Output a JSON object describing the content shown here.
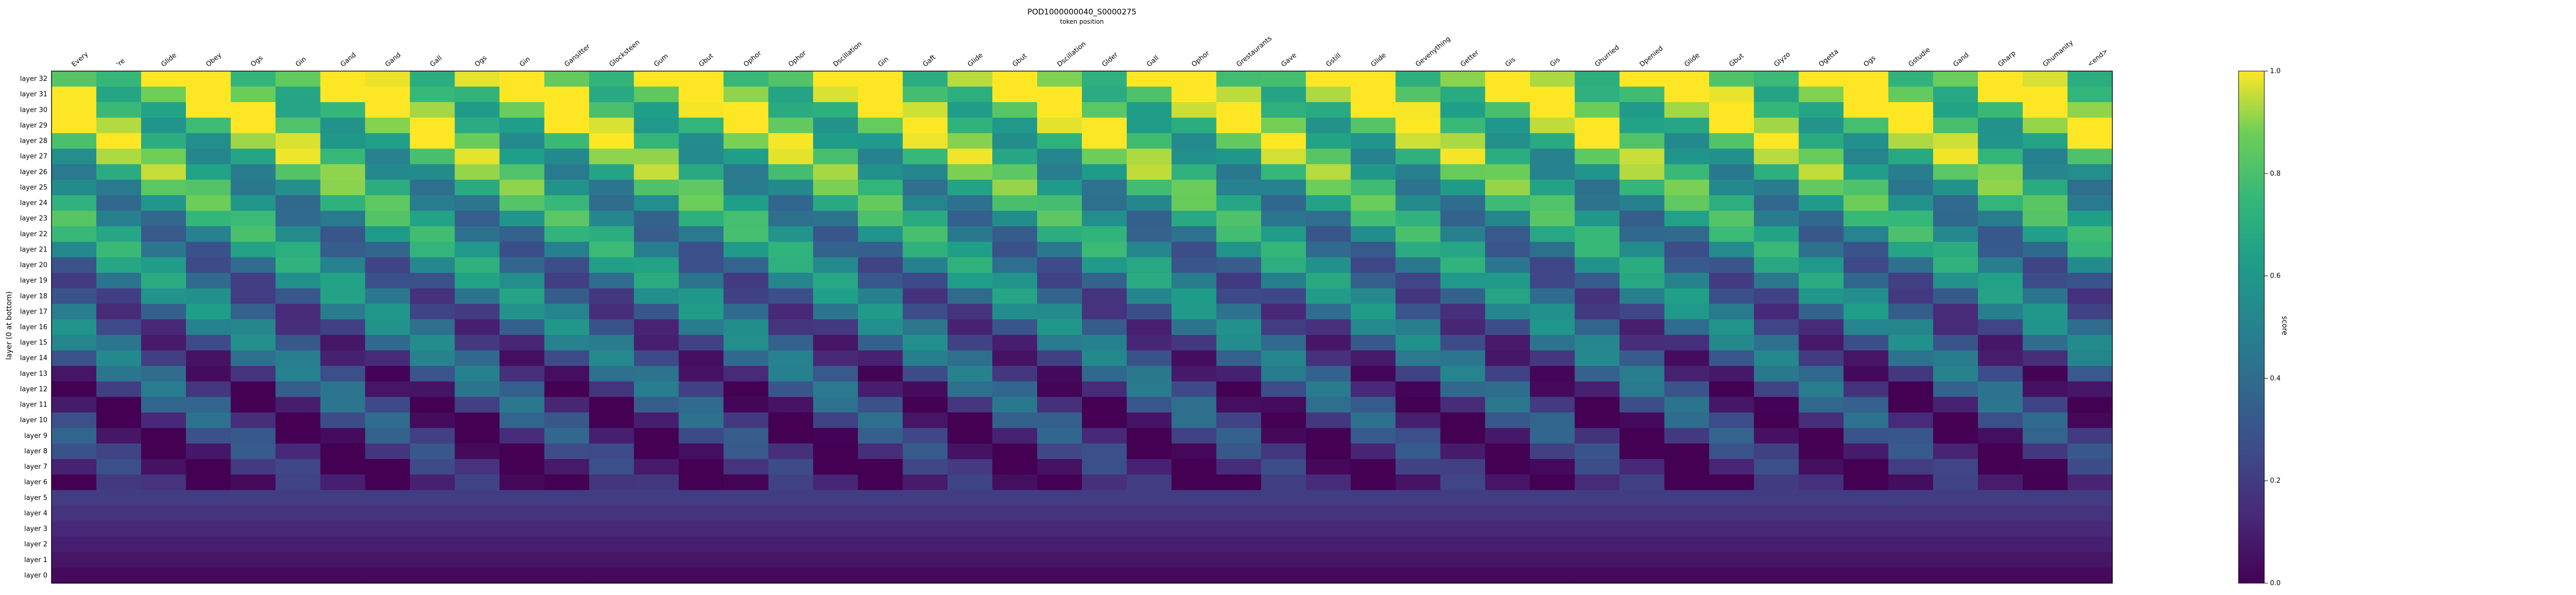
{
  "colors": {
    "colormap": "viridis",
    "frame": "#000000",
    "background": "#ffffff"
  },
  "chart_data": {
    "type": "heatmap",
    "title": "POD1000000040_S0000275",
    "xlabel": "token position",
    "ylabel": "layer (0 at bottom)",
    "colorbar_label": "score",
    "clim": [
      0,
      1
    ],
    "colorbar_ticks": [
      "0.0",
      "0.2",
      "0.4",
      "0.6",
      "0.8",
      "1.0"
    ],
    "x_tokens": [
      "Every",
      "'re",
      "Glide",
      "Obey",
      "Ogs",
      "Gin",
      "Gand",
      "Gand",
      "Gall",
      "Ogs",
      "Gin",
      "Gansitter",
      "Glocksteen",
      "Gum",
      "Gbut",
      "Ophor",
      "Ophor",
      "Dscillation",
      "Gin",
      "Gaft",
      "Glide",
      "Gbut",
      "Dscillation",
      "Glder",
      "Gall",
      "Ophor",
      "Grestaurants",
      "Gave",
      "Gstill",
      "Glide",
      "Gevenything",
      "Getter",
      "Gis",
      "Gis",
      "Ghurried",
      "Dpenied",
      "Glide",
      "Gbut",
      "Glyzo",
      "Ogetta",
      "Ogs",
      "Gstudie",
      "Gand",
      "Gharp",
      "Ghumanity",
      "<end>"
    ],
    "y_layers": [
      "layer 32",
      "layer 31",
      "layer 30",
      "layer 29",
      "layer 28",
      "layer 27",
      "layer 26",
      "layer 25",
      "layer 24",
      "layer 23",
      "layer 22",
      "layer 21",
      "layer 20",
      "layer 19",
      "layer 18",
      "layer 17",
      "layer 16",
      "layer 15",
      "layer 14",
      "layer 13",
      "layer 12",
      "layer 11",
      "layer 10",
      "layer 9",
      "layer 8",
      "layer 7",
      "layer 6",
      "layer 5",
      "layer 4",
      "layer 3",
      "layer 2",
      "layer 1",
      "layer 0"
    ]
  }
}
